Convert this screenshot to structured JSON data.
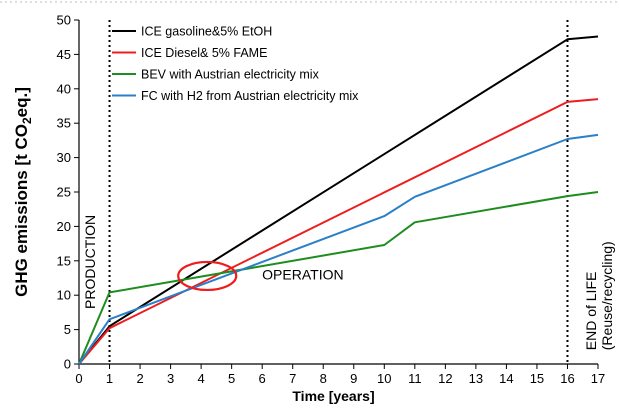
{
  "chart_data": {
    "type": "line",
    "title": "",
    "xlabel": "Time [years]",
    "ylabel_parts": [
      "GHG emissions [t CO",
      "2",
      "eq.",
      "]"
    ],
    "xlim": [
      0,
      17
    ],
    "ylim": [
      0,
      50
    ],
    "x_ticks": [
      "0",
      "1",
      "2",
      "3",
      "4",
      "5",
      "6",
      "7",
      "8",
      "9",
      "10",
      "11",
      "12",
      "13",
      "14",
      "15",
      "16",
      "17"
    ],
    "y_ticks": [
      "0",
      "5",
      "10",
      "15",
      "20",
      "25",
      "30",
      "35",
      "40",
      "45",
      "50"
    ],
    "grid": false,
    "legend_position": "top-center",
    "series": [
      {
        "name": "ICE gasoline&5% EtOH",
        "color": "#000000",
        "x": [
          0,
          1,
          16,
          17
        ],
        "y": [
          0,
          5.5,
          47.2,
          47.6
        ]
      },
      {
        "name": "ICE Diesel& 5% FAME",
        "color": "#ee1c1c",
        "x": [
          0,
          1,
          16,
          17
        ],
        "y": [
          0,
          5.2,
          38.1,
          38.5
        ]
      },
      {
        "name": "BEV with Austrian electricity mix",
        "color": "#1e8c1e",
        "x": [
          0,
          1,
          10,
          11,
          16,
          17
        ],
        "y": [
          0,
          10.4,
          17.3,
          20.6,
          24.4,
          25.0
        ]
      },
      {
        "name": "FC with H2 from Austrian electricity mix",
        "color": "#2a7fc8",
        "x": [
          0,
          1,
          10,
          11,
          16,
          17
        ],
        "y": [
          0,
          6.5,
          21.5,
          24.3,
          32.7,
          33.3
        ]
      }
    ],
    "vertical_markers": [
      1,
      16
    ],
    "annotations": {
      "production": "PRODUCTION",
      "operation": "OPERATION",
      "end_of_life_1": "END of LIFE",
      "end_of_life_2": "(Reuse/recycling)"
    },
    "highlight_ellipse": {
      "x_center": 4.2,
      "y_center": 12.8,
      "color": "#ee1c1c"
    }
  }
}
